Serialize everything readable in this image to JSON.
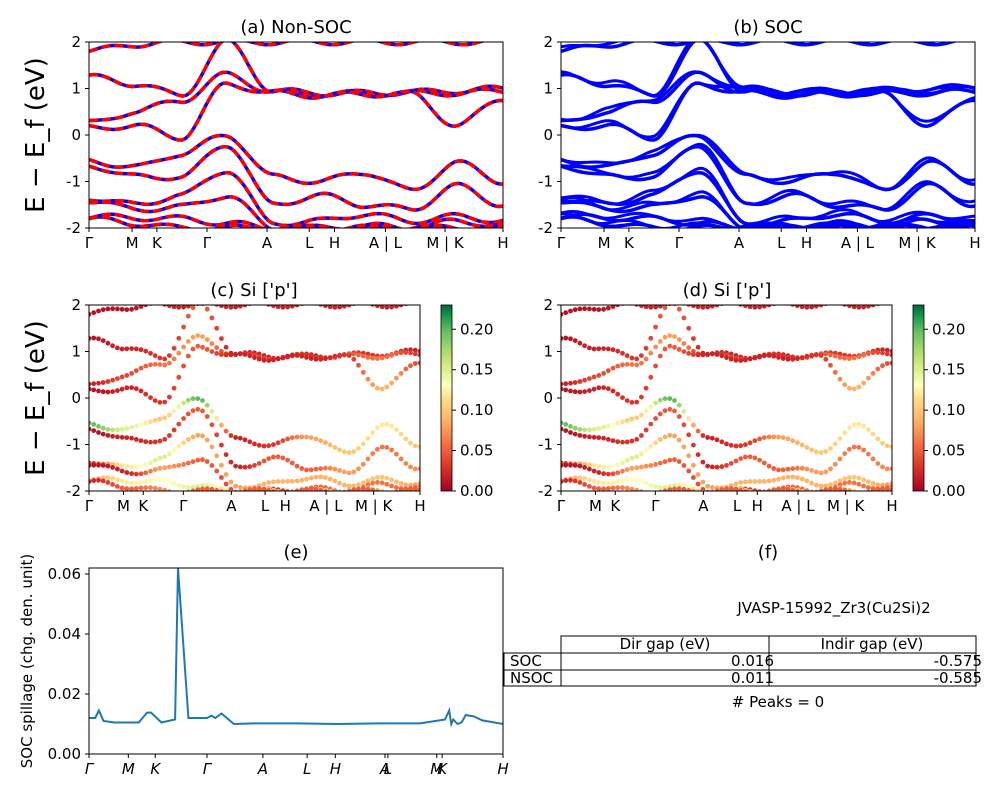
{
  "chart_data": [
    {
      "type": "line",
      "title": "(a) Non-SOC",
      "ylabel": "E − E_f (eV)",
      "ylim": [
        -2,
        2
      ],
      "yticks": [
        -2,
        -1,
        0,
        1,
        2
      ],
      "kpath": [
        "Γ",
        "M",
        "K",
        "Γ",
        "A",
        "L",
        "H",
        "A | L",
        "M | K",
        "H"
      ],
      "line_colors": [
        "#ff0000",
        "#0000ff"
      ],
      "line_style": "dashed red over blue",
      "bands": [
        [
          1.8,
          1.95,
          2.0,
          2.0,
          2.0,
          2.0,
          2.0,
          2.0,
          2.0,
          2.0
        ],
        [
          1.25,
          1.1,
          0.85,
          2.0,
          0.95,
          0.9,
          0.9,
          0.92,
          0.95,
          1.0
        ],
        [
          0.25,
          0.5,
          0.75,
          1.3,
          0.92,
          0.88,
          0.9,
          0.9,
          0.9,
          0.95
        ],
        [
          0.15,
          0.2,
          -0.05,
          1.1,
          0.9,
          0.85,
          0.88,
          0.88,
          0.2,
          0.8
        ],
        [
          -0.55,
          -0.7,
          -0.4,
          0.0,
          -0.9,
          -1.0,
          -0.8,
          -1.2,
          -0.6,
          -1.0
        ],
        [
          -0.65,
          -0.9,
          -0.9,
          -0.2,
          -1.5,
          -1.3,
          -1.5,
          -1.6,
          -1.1,
          -1.5
        ],
        [
          -1.35,
          -1.5,
          -1.3,
          -0.75,
          -1.9,
          -1.85,
          -1.7,
          -1.85,
          -1.75,
          -1.85
        ],
        [
          -1.4,
          -1.6,
          -1.55,
          -1.3,
          -2.0,
          -2.0,
          -1.95,
          -2.0,
          -1.85,
          -1.95
        ],
        [
          -1.75,
          -1.78,
          -1.8,
          -1.9,
          -2.0,
          -2.0,
          -2.0,
          -2.0,
          -2.0,
          -2.0
        ],
        [
          -1.8,
          -1.9,
          -2.0,
          -2.0,
          -2.0,
          -2.0,
          -2.0,
          -2.0,
          -2.0,
          -2.0
        ]
      ]
    },
    {
      "type": "line",
      "title": "(b) SOC",
      "ylim": [
        -2,
        2
      ],
      "yticks": [
        -2,
        -1,
        0,
        1,
        2
      ],
      "kpath": [
        "Γ",
        "M",
        "K",
        "Γ",
        "A",
        "L",
        "H",
        "A | L",
        "M | K",
        "H"
      ],
      "line_colors": [
        "#0000ff"
      ],
      "bands": [
        [
          1.8,
          1.95,
          2.0,
          2.0,
          2.0,
          2.0,
          2.0,
          2.0,
          2.0,
          2.0
        ],
        [
          1.25,
          1.1,
          0.85,
          2.0,
          0.95,
          0.9,
          0.9,
          0.92,
          0.95,
          1.0
        ],
        [
          0.25,
          0.5,
          0.75,
          1.3,
          0.92,
          0.88,
          0.9,
          0.9,
          0.9,
          0.95
        ],
        [
          0.15,
          0.2,
          -0.05,
          1.1,
          0.9,
          0.85,
          0.88,
          0.88,
          0.2,
          0.8
        ],
        [
          -0.55,
          -0.7,
          -0.4,
          0.0,
          -0.9,
          -1.0,
          -0.8,
          -1.2,
          -0.6,
          -1.0
        ],
        [
          -0.65,
          -0.9,
          -0.9,
          -0.2,
          -1.5,
          -1.3,
          -1.5,
          -1.6,
          -1.1,
          -1.5
        ],
        [
          -1.35,
          -1.5,
          -1.3,
          -0.75,
          -1.9,
          -1.85,
          -1.7,
          -1.85,
          -1.75,
          -1.85
        ],
        [
          -1.4,
          -1.6,
          -1.55,
          -1.3,
          -2.0,
          -2.0,
          -1.95,
          -2.0,
          -1.85,
          -1.95
        ],
        [
          -1.75,
          -1.78,
          -1.8,
          -1.9,
          -2.0,
          -2.0,
          -2.0,
          -2.0,
          -2.0,
          -2.0
        ],
        [
          -1.8,
          -1.9,
          -2.0,
          -2.0,
          -2.0,
          -2.0,
          -2.0,
          -2.0,
          -2.0,
          -2.0
        ]
      ]
    },
    {
      "type": "scatter",
      "title": "(c)  Si ['p']",
      "ylabel": "E − E_f (eV)",
      "ylim": [
        -2,
        2
      ],
      "yticks": [
        -2,
        -1,
        0,
        1,
        2
      ],
      "kpath": [
        "Γ",
        "M",
        "K",
        "Γ",
        "A",
        "L",
        "H",
        "A | L",
        "M | K",
        "H"
      ],
      "colorbar": {
        "range": [
          0.0,
          0.23
        ],
        "ticks": [
          "0.00",
          "0.05",
          "0.10",
          "0.15",
          "0.20"
        ],
        "colormap": "RdYlGn"
      },
      "bands": [
        [
          1.8,
          1.95,
          2.0,
          2.0,
          2.0,
          2.0,
          2.0,
          2.0,
          2.0,
          2.0
        ],
        [
          1.25,
          1.1,
          0.85,
          2.0,
          0.95,
          0.9,
          0.9,
          0.92,
          0.95,
          1.0
        ],
        [
          0.25,
          0.5,
          0.75,
          1.3,
          0.92,
          0.88,
          0.9,
          0.9,
          0.9,
          0.95
        ],
        [
          0.15,
          0.2,
          -0.05,
          1.1,
          0.9,
          0.85,
          0.88,
          0.88,
          0.2,
          0.8
        ],
        [
          -0.55,
          -0.7,
          -0.4,
          0.0,
          -0.9,
          -1.0,
          -0.8,
          -1.2,
          -0.6,
          -1.0
        ],
        [
          -0.65,
          -0.9,
          -0.9,
          -0.2,
          -1.5,
          -1.3,
          -1.5,
          -1.6,
          -1.1,
          -1.5
        ],
        [
          -1.35,
          -1.5,
          -1.3,
          -0.75,
          -1.9,
          -1.85,
          -1.7,
          -1.85,
          -1.75,
          -1.85
        ],
        [
          -1.4,
          -1.6,
          -1.55,
          -1.3,
          -2.0,
          -2.0,
          -1.95,
          -2.0,
          -1.85,
          -1.95
        ],
        [
          -1.75,
          -1.78,
          -1.8,
          -1.9,
          -2.0,
          -2.0,
          -2.0,
          -2.0,
          -2.0,
          -2.0
        ],
        [
          -1.8,
          -1.9,
          -2.0,
          -2.0,
          -2.0,
          -2.0,
          -2.0,
          -2.0,
          -2.0,
          -2.0
        ]
      ],
      "weights": [
        [
          0.01,
          0.01,
          0.02,
          0.02,
          0.02,
          0.02,
          0.02,
          0.02,
          0.02,
          0.02
        ],
        [
          0.01,
          0.02,
          0.03,
          0.05,
          0.02,
          0.02,
          0.02,
          0.03,
          0.03,
          0.02
        ],
        [
          0.02,
          0.04,
          0.06,
          0.08,
          0.03,
          0.04,
          0.03,
          0.05,
          0.06,
          0.03
        ],
        [
          0.01,
          0.02,
          0.03,
          0.05,
          0.02,
          0.02,
          0.02,
          0.03,
          0.09,
          0.04
        ],
        [
          0.2,
          0.15,
          0.1,
          0.2,
          0.02,
          0.03,
          0.08,
          0.1,
          0.12,
          0.1
        ],
        [
          0.01,
          0.02,
          0.03,
          0.05,
          0.02,
          0.05,
          0.05,
          0.08,
          0.06,
          0.07
        ],
        [
          0.03,
          0.12,
          0.15,
          0.08,
          0.08,
          0.09,
          0.09,
          0.09,
          0.1,
          0.08
        ],
        [
          0.01,
          0.02,
          0.08,
          0.05,
          0.04,
          0.03,
          0.05,
          0.06,
          0.06,
          0.05
        ],
        [
          0.08,
          0.12,
          0.13,
          0.15,
          0.1,
          0.1,
          0.1,
          0.1,
          0.1,
          0.1
        ],
        [
          0.02,
          0.05,
          0.07,
          0.05,
          0.05,
          0.05,
          0.05,
          0.05,
          0.05,
          0.05
        ]
      ]
    },
    {
      "type": "scatter",
      "title": "(d) Si ['p']",
      "ylim": [
        -2,
        2
      ],
      "yticks": [
        -2,
        -1,
        0,
        1,
        2
      ],
      "kpath": [
        "Γ",
        "M",
        "K",
        "Γ",
        "A",
        "L",
        "H",
        "A | L",
        "M | K",
        "H"
      ],
      "colorbar": {
        "range": [
          0.0,
          0.23
        ],
        "ticks": [
          "0.00",
          "0.05",
          "0.10",
          "0.15",
          "0.20"
        ],
        "colormap": "RdYlGn"
      },
      "bands": [
        [
          1.8,
          1.95,
          2.0,
          2.0,
          2.0,
          2.0,
          2.0,
          2.0,
          2.0,
          2.0
        ],
        [
          1.25,
          1.1,
          0.85,
          2.0,
          0.95,
          0.9,
          0.9,
          0.92,
          0.95,
          1.0
        ],
        [
          0.25,
          0.5,
          0.75,
          1.3,
          0.92,
          0.88,
          0.9,
          0.9,
          0.9,
          0.95
        ],
        [
          0.15,
          0.2,
          -0.05,
          1.1,
          0.9,
          0.85,
          0.88,
          0.88,
          0.2,
          0.8
        ],
        [
          -0.55,
          -0.7,
          -0.4,
          0.0,
          -0.9,
          -1.0,
          -0.8,
          -1.2,
          -0.6,
          -1.0
        ],
        [
          -0.65,
          -0.9,
          -0.9,
          -0.2,
          -1.5,
          -1.3,
          -1.5,
          -1.6,
          -1.1,
          -1.5
        ],
        [
          -1.35,
          -1.5,
          -1.3,
          -0.75,
          -1.9,
          -1.85,
          -1.7,
          -1.85,
          -1.75,
          -1.85
        ],
        [
          -1.4,
          -1.6,
          -1.55,
          -1.3,
          -2.0,
          -2.0,
          -1.95,
          -2.0,
          -1.85,
          -1.95
        ],
        [
          -1.75,
          -1.78,
          -1.8,
          -1.9,
          -2.0,
          -2.0,
          -2.0,
          -2.0,
          -2.0,
          -2.0
        ],
        [
          -1.8,
          -1.9,
          -2.0,
          -2.0,
          -2.0,
          -2.0,
          -2.0,
          -2.0,
          -2.0,
          -2.0
        ]
      ],
      "weights": [
        [
          0.01,
          0.01,
          0.02,
          0.02,
          0.02,
          0.02,
          0.02,
          0.02,
          0.02,
          0.02
        ],
        [
          0.01,
          0.02,
          0.03,
          0.05,
          0.02,
          0.02,
          0.02,
          0.03,
          0.03,
          0.02
        ],
        [
          0.02,
          0.04,
          0.06,
          0.08,
          0.03,
          0.04,
          0.03,
          0.05,
          0.06,
          0.03
        ],
        [
          0.01,
          0.02,
          0.03,
          0.05,
          0.02,
          0.02,
          0.02,
          0.03,
          0.09,
          0.04
        ],
        [
          0.2,
          0.15,
          0.1,
          0.2,
          0.02,
          0.03,
          0.08,
          0.1,
          0.12,
          0.1
        ],
        [
          0.01,
          0.02,
          0.03,
          0.05,
          0.02,
          0.05,
          0.05,
          0.08,
          0.06,
          0.07
        ],
        [
          0.03,
          0.12,
          0.15,
          0.08,
          0.08,
          0.09,
          0.09,
          0.09,
          0.1,
          0.08
        ],
        [
          0.01,
          0.02,
          0.08,
          0.05,
          0.04,
          0.03,
          0.05,
          0.06,
          0.06,
          0.05
        ],
        [
          0.08,
          0.12,
          0.13,
          0.15,
          0.1,
          0.1,
          0.1,
          0.1,
          0.1,
          0.1
        ],
        [
          0.02,
          0.05,
          0.07,
          0.05,
          0.05,
          0.05,
          0.05,
          0.05,
          0.05,
          0.05
        ]
      ]
    },
    {
      "type": "line",
      "title": "(e)",
      "ylabel": "SOC spillage (chg. den. unit)",
      "ylim": [
        0,
        0.062
      ],
      "yticks": [
        "0.00",
        "0.02",
        "0.04",
        "0.06"
      ],
      "kpath": [
        "Γ",
        "M",
        "K",
        "Γ",
        "A",
        "L",
        "H",
        "A",
        "L",
        "M",
        "K",
        "H"
      ],
      "color": "#1f77b4",
      "x": [
        0.0,
        0.015,
        0.024,
        0.035,
        0.062,
        0.12,
        0.14,
        0.15,
        0.175,
        0.208,
        0.215,
        0.24,
        0.285,
        0.296,
        0.305,
        0.32,
        0.35,
        0.4,
        0.5,
        0.6,
        0.7,
        0.8,
        0.86,
        0.87,
        0.875,
        0.88,
        0.89,
        0.9,
        0.91,
        0.93,
        0.95,
        1.0
      ],
      "values": [
        0.012,
        0.012,
        0.0145,
        0.011,
        0.0105,
        0.0105,
        0.0138,
        0.0138,
        0.0105,
        0.0115,
        0.062,
        0.012,
        0.012,
        0.0128,
        0.012,
        0.0135,
        0.01,
        0.0102,
        0.0102,
        0.01,
        0.0102,
        0.0102,
        0.0115,
        0.0145,
        0.01,
        0.0115,
        0.01,
        0.0105,
        0.013,
        0.0125,
        0.0112,
        0.01
      ]
    },
    {
      "type": "table",
      "title": "(f)",
      "caption": "JVASP-15992_Zr3(Cu2Si)2",
      "columns": [
        "Dir gap (eV)",
        "Indir gap (eV)"
      ],
      "rows": [
        {
          "label": "SOC",
          "values": [
            "0.016",
            "-0.575"
          ]
        },
        {
          "label": "NSOC",
          "values": [
            "0.011",
            "-0.585"
          ]
        }
      ],
      "footer": "# Peaks = 0"
    }
  ]
}
